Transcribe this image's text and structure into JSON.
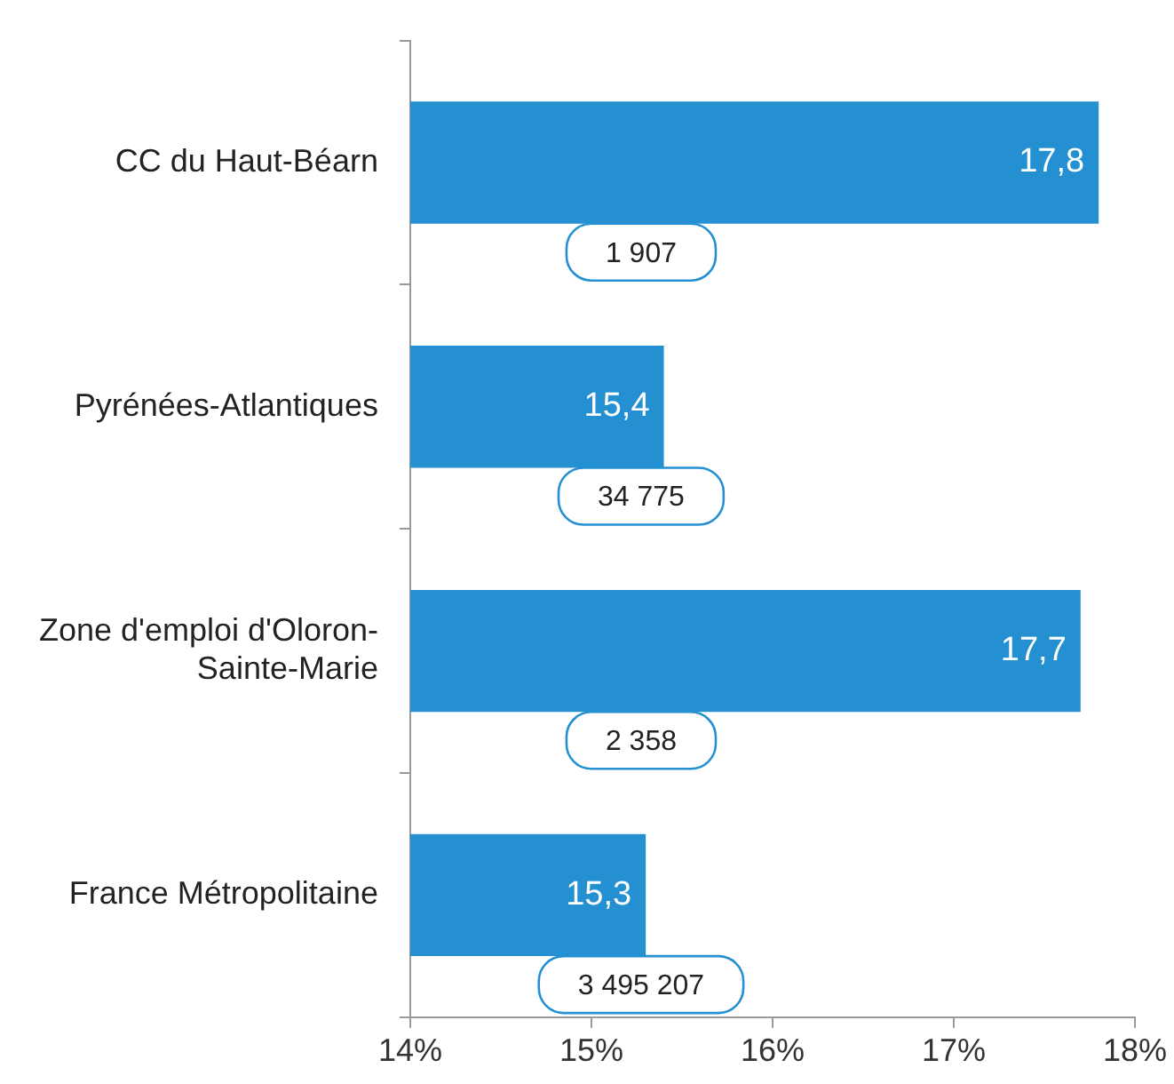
{
  "chart_data": {
    "type": "bar",
    "orientation": "horizontal",
    "categories": [
      "CC du Haut-Béarn",
      "Pyrénées-Atlantiques",
      "Zone d'emploi d'Oloron-Sainte-Marie",
      "France Métropolitaine"
    ],
    "values": [
      17.8,
      15.4,
      17.7,
      15.3
    ],
    "value_labels": [
      "17,8",
      "15,4",
      "17,7",
      "15,3"
    ],
    "color": "#2490d2",
    "xlim": [
      14,
      18
    ],
    "xticks": [
      {
        "value": 14,
        "label": "14%"
      },
      {
        "value": 15,
        "label": "15%"
      },
      {
        "value": 16,
        "label": "16%"
      },
      {
        "value": 17,
        "label": "17%"
      },
      {
        "value": 18,
        "label": "18%"
      }
    ],
    "grid": false,
    "legend": false,
    "annotations": [
      "1 907",
      "34 775",
      "2 358",
      "3 495 207"
    ]
  }
}
